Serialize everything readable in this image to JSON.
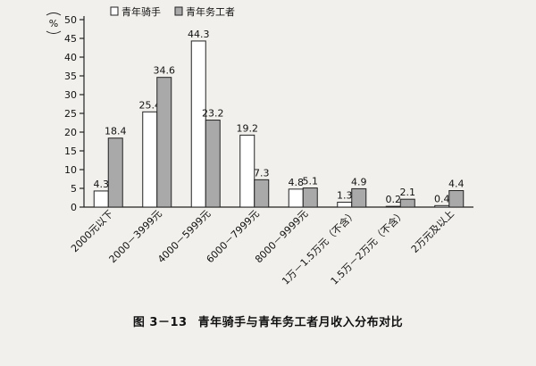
{
  "chart_data": {
    "type": "bar",
    "unit_label": "%",
    "categories": [
      "2000元以下",
      "2000－3999元",
      "4000－5999元",
      "6000－7999元",
      "8000－9999元",
      "1万－1.5万元（不含）",
      "1.5万－2万元（不含）",
      "2万元及以上"
    ],
    "series": [
      {
        "name": "青年骑手",
        "values": [
          4.3,
          25.4,
          44.3,
          19.2,
          4.8,
          1.3,
          0.2,
          0.4
        ],
        "fill": "#ffffff"
      },
      {
        "name": "青年务工者",
        "values": [
          18.4,
          34.6,
          23.2,
          7.3,
          5.1,
          4.9,
          2.1,
          4.4
        ],
        "fill": "#a9a9a9"
      }
    ],
    "ylim": [
      0,
      50
    ],
    "yticks": [
      0,
      5,
      10,
      15,
      20,
      25,
      30,
      35,
      40,
      45,
      50
    ],
    "legend_position": "top-left",
    "grid": false
  },
  "caption": {
    "figure_number": "图 3－13",
    "title": "青年骑手与青年务工者月收入分布对比"
  }
}
